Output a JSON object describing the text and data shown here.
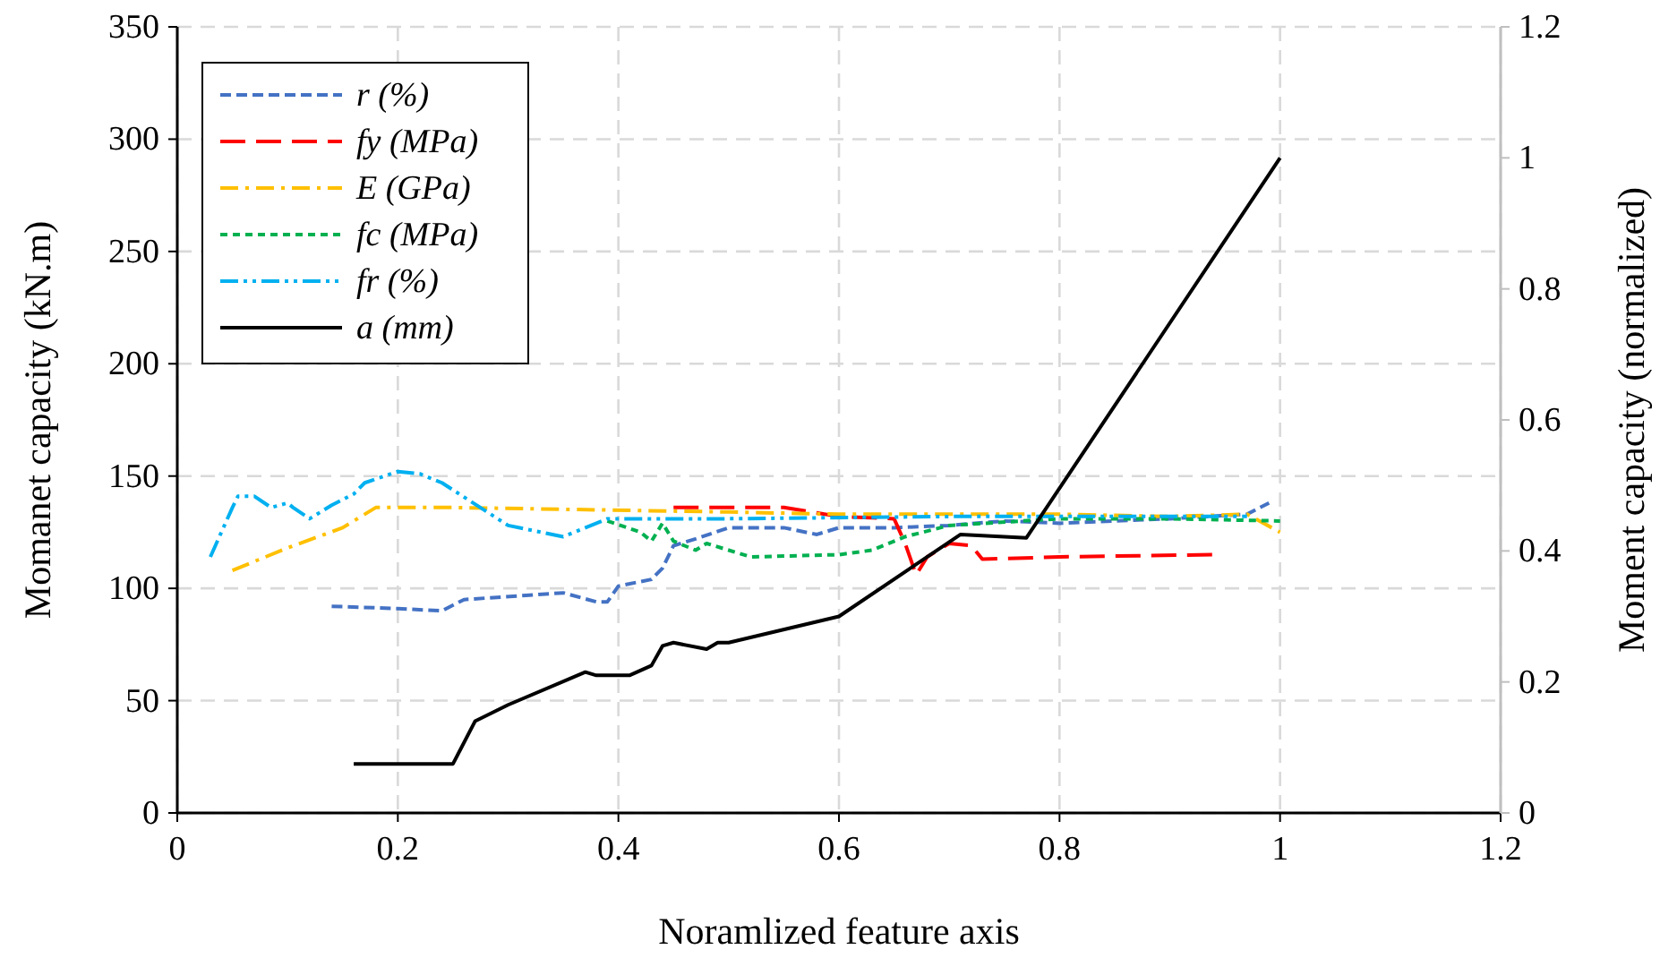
{
  "chart_data": {
    "type": "line",
    "xlabel": "Noramlized feature axis",
    "ylabel": "Momanet capacity (kN.m)",
    "y2label": "Moment capacity (normalized)",
    "xlim": [
      0,
      1.2
    ],
    "xticks": [
      0,
      0.2,
      0.4,
      0.6,
      0.8,
      1,
      1.2
    ],
    "ylim": [
      0,
      350
    ],
    "yticks": [
      0,
      50,
      100,
      150,
      200,
      250,
      300,
      350
    ],
    "y2lim": [
      0,
      1.2
    ],
    "y2ticks": [
      0,
      0.2,
      0.4,
      0.6,
      0.8,
      1,
      1.2
    ],
    "grid": true,
    "legend": "top left",
    "marker": "none",
    "series": [
      {
        "name": "r (%)",
        "color": "#4472c4",
        "line_style": "dashed",
        "x": [
          0.14,
          0.2,
          0.24,
          0.26,
          0.35,
          0.38,
          0.39,
          0.4,
          0.43,
          0.44,
          0.45,
          0.47,
          0.5,
          0.55,
          0.58,
          0.6,
          0.65,
          0.7,
          0.75,
          0.8,
          0.9,
          0.97,
          0.99
        ],
        "values": [
          92,
          91,
          90,
          95,
          98,
          94,
          94,
          101,
          104,
          109,
          119,
          122,
          127,
          127,
          124,
          127,
          127,
          128,
          130,
          129,
          131,
          133,
          138
        ]
      },
      {
        "name": "fy (MPa)",
        "color": "#ff0000",
        "line_style": "longdash",
        "x": [
          0.45,
          0.55,
          0.6,
          0.65,
          0.66,
          0.67,
          0.68,
          0.7,
          0.72,
          0.73,
          0.8,
          0.94
        ],
        "values": [
          136,
          136,
          132,
          131,
          120,
          106,
          114,
          120,
          119,
          113,
          114,
          115
        ]
      },
      {
        "name": "E (GPa)",
        "color": "#ffc000",
        "line_style": "dashdot",
        "x": [
          0.05,
          0.1,
          0.15,
          0.18,
          0.25,
          0.5,
          0.6,
          0.7,
          0.8,
          0.9,
          0.97,
          1.0
        ],
        "values": [
          108,
          118,
          127,
          136,
          136,
          134,
          133,
          133,
          133,
          132,
          133,
          125
        ]
      },
      {
        "name": "fc (MPa)",
        "color": "#00b050",
        "line_style": "dotted",
        "x": [
          0.39,
          0.42,
          0.43,
          0.44,
          0.45,
          0.47,
          0.48,
          0.52,
          0.6,
          0.63,
          0.66,
          0.7,
          0.8,
          0.9,
          1.0
        ],
        "values": [
          130,
          125,
          121,
          129,
          121,
          117,
          120,
          114,
          115,
          117,
          123,
          128,
          131,
          131,
          130
        ]
      },
      {
        "name": "fr (%)",
        "color": "#00b0f0",
        "line_style": "dashdotdot",
        "x": [
          0.03,
          0.05,
          0.055,
          0.07,
          0.085,
          0.1,
          0.105,
          0.12,
          0.14,
          0.16,
          0.17,
          0.2,
          0.22,
          0.24,
          0.3,
          0.35,
          0.39,
          0.5,
          0.7,
          0.9,
          0.97
        ],
        "values": [
          114,
          136,
          141,
          141,
          136,
          138,
          136,
          131,
          137,
          142,
          147,
          152,
          151,
          147,
          128,
          123,
          131,
          131,
          132,
          132,
          132
        ]
      },
      {
        "name": "a (mm)",
        "color": "#000000",
        "line_style": "solid",
        "axis": "y2",
        "x": [
          0.16,
          0.25,
          0.27,
          0.3,
          0.37,
          0.38,
          0.41,
          0.43,
          0.44,
          0.45,
          0.48,
          0.49,
          0.5,
          0.6,
          0.71,
          0.77,
          1.0
        ],
        "values": [
          0.075,
          0.075,
          0.14,
          0.165,
          0.215,
          0.21,
          0.21,
          0.225,
          0.255,
          0.26,
          0.25,
          0.26,
          0.26,
          0.3,
          0.425,
          0.42,
          1.0
        ]
      }
    ]
  }
}
